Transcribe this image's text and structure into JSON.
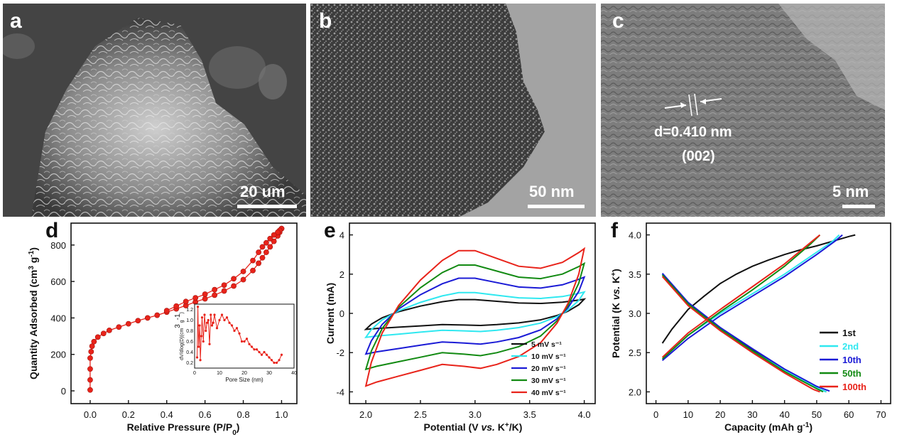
{
  "panels": {
    "a": {
      "letter": "a",
      "scale_label": "20 um",
      "image": "sem-porous-carbon-image"
    },
    "b": {
      "letter": "b",
      "scale_label": "50 nm",
      "image": "tem-image"
    },
    "c": {
      "letter": "c",
      "scale_label": "5 nm",
      "annotation_line1": "d=0.410 nm",
      "annotation_line2": "(002)",
      "image": "hrtem-lattice-image"
    },
    "d": {
      "letter": "d"
    },
    "e": {
      "letter": "e"
    },
    "f": {
      "letter": "f"
    }
  },
  "chart_data": [
    {
      "id": "d",
      "type": "scatter",
      "xlabel": "Relative Pressure (P/P0)",
      "ylabel": "Quantity Adsorbed (cm3 g-1)",
      "xlim": [
        -0.1,
        1.08
      ],
      "ylim": [
        -70,
        920
      ],
      "xticks": [
        "0.0",
        "0.2",
        "0.4",
        "0.6",
        "0.8",
        "1.0"
      ],
      "yticks": [
        "0",
        "200",
        "400",
        "600",
        "800"
      ],
      "series": [
        {
          "color": "#e8231a",
          "x": [
            0.0,
            0.0,
            0.0,
            0.0,
            0.005,
            0.01,
            0.02,
            0.04,
            0.07,
            0.1,
            0.15,
            0.2,
            0.25,
            0.3,
            0.35,
            0.4,
            0.45,
            0.5,
            0.55,
            0.6,
            0.65,
            0.7,
            0.75,
            0.8,
            0.85,
            0.88,
            0.9,
            0.92,
            0.94,
            0.96,
            0.98,
            0.99,
            1.0
          ],
          "y": [
            5,
            60,
            120,
            180,
            215,
            245,
            270,
            295,
            315,
            332,
            350,
            368,
            385,
            400,
            415,
            432,
            450,
            468,
            488,
            505,
            525,
            548,
            575,
            610,
            660,
            700,
            730,
            760,
            790,
            820,
            850,
            870,
            890
          ]
        },
        {
          "color": "#e8231a",
          "x": [
            1.0,
            0.99,
            0.98,
            0.96,
            0.94,
            0.92,
            0.9,
            0.88,
            0.85,
            0.8,
            0.75,
            0.7,
            0.65,
            0.6,
            0.55,
            0.5,
            0.45,
            0.4
          ],
          "y": [
            890,
            880,
            870,
            855,
            835,
            812,
            790,
            760,
            715,
            655,
            615,
            580,
            555,
            530,
            510,
            490,
            465,
            440
          ]
        }
      ],
      "inset": {
        "xlabel": "Pore Size (nm)",
        "ylabel": "dV/dlog(D)(cm3 g-1)",
        "xlim": [
          0,
          40
        ],
        "ylim": [
          0.1,
          1.3
        ],
        "xticks": [
          "0",
          "10",
          "20",
          "30",
          "40"
        ],
        "yticks": [
          "0.2",
          "0.4",
          "0.6",
          "0.8",
          "1.0",
          "1.2"
        ],
        "x": [
          1.0,
          1.3,
          1.6,
          2.0,
          2.3,
          2.7,
          3.0,
          3.5,
          4.0,
          4.5,
          5.0,
          5.5,
          6.0,
          6.5,
          7.0,
          7.5,
          8.0,
          9.0,
          10.0,
          11.0,
          12.0,
          13.0,
          14.0,
          15.0,
          16.0,
          17.0,
          18.0,
          19.0,
          20.0,
          21.0,
          22.0,
          23.0,
          24.0,
          25.0,
          26.0,
          27.0,
          28.0,
          29.0,
          30.0,
          31.0,
          32.0,
          33.0,
          34.0,
          35.0
        ],
        "y": [
          0.3,
          1.25,
          0.5,
          0.9,
          0.25,
          0.7,
          1.05,
          0.6,
          1.1,
          0.8,
          0.95,
          1.0,
          0.55,
          1.1,
          0.9,
          0.95,
          1.1,
          0.85,
          1.0,
          1.1,
          1.0,
          1.05,
          0.95,
          0.9,
          0.8,
          0.85,
          0.75,
          0.6,
          0.6,
          0.65,
          0.55,
          0.5,
          0.45,
          0.45,
          0.4,
          0.35,
          0.4,
          0.35,
          0.3,
          0.25,
          0.2,
          0.2,
          0.25,
          0.35
        ]
      }
    },
    {
      "id": "e",
      "type": "line",
      "xlabel": "Potential (V vs. K+/K)",
      "ylabel": "Current (mA)",
      "xlim": [
        1.85,
        4.1
      ],
      "ylim": [
        -4.6,
        4.6
      ],
      "xticks": [
        "2.0",
        "2.5",
        "3.0",
        "3.5",
        "4.0"
      ],
      "yticks": [
        "-4",
        "-2",
        "0",
        "2",
        "4"
      ],
      "legend_position": "bottom-right",
      "series": [
        {
          "name": "5 mV s-1",
          "label": "5 mV s⁻¹",
          "color": "#111111",
          "scale": 0.22
        },
        {
          "name": "10 mV s-1",
          "label": "10 mV s⁻¹",
          "color": "#2fe8f0",
          "scale": 0.33
        },
        {
          "name": "20 mV s-1",
          "label": "20 mV s⁻¹",
          "color": "#1b1bd6",
          "scale": 0.56
        },
        {
          "name": "30 mV s-1",
          "label": "30 mV s⁻¹",
          "color": "#128a12",
          "scale": 0.77
        },
        {
          "name": "40 mV s-1",
          "label": "40 mV s⁻¹",
          "color": "#e8231a",
          "scale": 1.0
        }
      ],
      "curve_40": {
        "upper": {
          "x": [
            2.0,
            2.05,
            2.15,
            2.3,
            2.5,
            2.7,
            2.85,
            3.0,
            3.2,
            3.4,
            3.6,
            3.8,
            3.95,
            4.0
          ],
          "y": [
            -3.7,
            -2.5,
            -1.0,
            0.4,
            1.7,
            2.7,
            3.2,
            3.2,
            2.8,
            2.4,
            2.3,
            2.6,
            3.1,
            3.3
          ]
        },
        "lower": {
          "x": [
            4.0,
            3.95,
            3.85,
            3.75,
            3.6,
            3.4,
            3.2,
            3.05,
            2.9,
            2.7,
            2.5,
            2.3,
            2.1,
            2.0
          ],
          "y": [
            3.3,
            2.0,
            0.5,
            -0.5,
            -1.5,
            -2.2,
            -2.6,
            -2.8,
            -2.7,
            -2.6,
            -2.9,
            -3.2,
            -3.5,
            -3.7
          ]
        }
      }
    },
    {
      "id": "f",
      "type": "line",
      "xlabel": "Capacity (mAh g-1)",
      "ylabel": "Potential (K vs. K+)",
      "xlim": [
        -3,
        73
      ],
      "ylim": [
        1.85,
        4.15
      ],
      "xticks": [
        "0",
        "10",
        "20",
        "30",
        "40",
        "50",
        "60",
        "70"
      ],
      "yticks": [
        "2.0",
        "2.5",
        "3.0",
        "3.5",
        "4.0"
      ],
      "legend_position": "bottom-right",
      "series": [
        {
          "name": "1st",
          "color": "#111111",
          "charge": {
            "x": [
              2,
              5,
              10,
              15,
              20,
              25,
              30,
              35,
              40,
              45,
              50,
              55,
              60,
              62
            ],
            "y": [
              2.62,
              2.8,
              3.05,
              3.22,
              3.38,
              3.5,
              3.6,
              3.68,
              3.75,
              3.81,
              3.86,
              3.92,
              3.98,
              4.0
            ]
          },
          "discharge": {
            "x": [
              2,
              5,
              10,
              15,
              20,
              25,
              30,
              35,
              40,
              45,
              50,
              53
            ],
            "y": [
              3.5,
              3.35,
              3.13,
              2.95,
              2.8,
              2.67,
              2.53,
              2.4,
              2.27,
              2.15,
              2.05,
              2.0
            ]
          }
        },
        {
          "name": "2nd",
          "color": "#2fe8f0",
          "charge": {
            "x": [
              2,
              10,
              20,
              30,
              40,
              50,
              55,
              57
            ],
            "y": [
              2.42,
              2.72,
              3.0,
              3.25,
              3.5,
              3.78,
              3.92,
              4.0
            ]
          },
          "discharge": {
            "x": [
              2,
              10,
              20,
              30,
              40,
              50,
              53
            ],
            "y": [
              3.5,
              3.12,
              2.8,
              2.52,
              2.27,
              2.05,
              2.0
            ]
          }
        },
        {
          "name": "10th",
          "color": "#1b1bd6",
          "charge": {
            "x": [
              2,
              10,
              20,
              30,
              40,
              50,
              56,
              58
            ],
            "y": [
              2.4,
              2.68,
              2.97,
              3.22,
              3.47,
              3.75,
              3.93,
              4.0
            ]
          },
          "discharge": {
            "x": [
              2,
              10,
              20,
              30,
              40,
              50,
              54
            ],
            "y": [
              3.51,
              3.14,
              2.82,
              2.55,
              2.29,
              2.07,
              2.01
            ]
          }
        },
        {
          "name": "50th",
          "color": "#128a12",
          "charge": {
            "x": [
              2,
              10,
              20,
              30,
              40,
              48,
              51
            ],
            "y": [
              2.42,
              2.72,
              3.02,
              3.3,
              3.6,
              3.88,
              4.0
            ]
          },
          "discharge": {
            "x": [
              2,
              10,
              20,
              30,
              40,
              50,
              52
            ],
            "y": [
              3.49,
              3.12,
              2.8,
              2.52,
              2.26,
              2.04,
              2.0
            ]
          }
        },
        {
          "name": "100th",
          "color": "#e8231a",
          "charge": {
            "x": [
              2,
              10,
              20,
              30,
              40,
              48,
              51
            ],
            "y": [
              2.44,
              2.75,
              3.05,
              3.34,
              3.63,
              3.9,
              4.0
            ]
          },
          "discharge": {
            "x": [
              2,
              10,
              20,
              30,
              40,
              49,
              51
            ],
            "y": [
              3.47,
              3.1,
              2.78,
              2.5,
              2.24,
              2.03,
              2.0
            ]
          }
        }
      ]
    }
  ]
}
